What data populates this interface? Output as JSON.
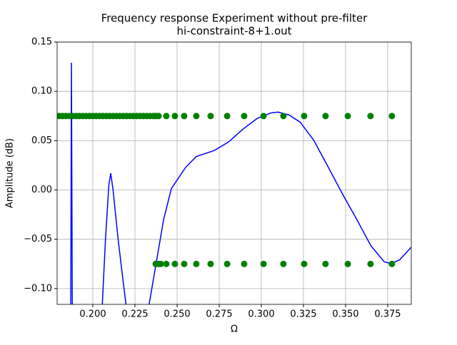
{
  "chart_data": {
    "type": "line",
    "title": [
      "Frequency response Experiment without pre-filter",
      "hi-constraint-8+1.out"
    ],
    "x_label": "Ω",
    "y_label": "Amplitude (dB)",
    "y_label_color": "#0000ff",
    "xlim": [
      0.1788,
      0.389
    ],
    "ylim": [
      -0.116,
      0.15
    ],
    "grid": true,
    "xticks": [
      {
        "value": 0.2,
        "label": "0.200"
      },
      {
        "value": 0.225,
        "label": "0.225"
      },
      {
        "value": 0.25,
        "label": "0.250"
      },
      {
        "value": 0.275,
        "label": "0.275"
      },
      {
        "value": 0.3,
        "label": "0.300"
      },
      {
        "value": 0.325,
        "label": "0.325"
      },
      {
        "value": 0.35,
        "label": "0.350"
      },
      {
        "value": 0.375,
        "label": "0.375"
      }
    ],
    "yticks": [
      {
        "value": -0.1,
        "label": "−0.10"
      },
      {
        "value": -0.05,
        "label": "−0.05"
      },
      {
        "value": 0,
        "label": "0.00"
      },
      {
        "value": 0.05,
        "label": "0.05"
      },
      {
        "value": 0.1,
        "label": "0.10"
      },
      {
        "value": 0.15,
        "label": "0.15"
      }
    ],
    "series": [
      {
        "style": "line",
        "color": "#0000ff",
        "x": [
          0.1869,
          0.1873,
          0.1878,
          0.1879,
          0.2055,
          0.2075,
          0.2095,
          0.2106,
          0.212,
          0.215,
          0.2185,
          0.22,
          0.2201,
          0.233,
          0.237,
          0.242,
          0.2466,
          0.2551,
          0.2614,
          0.272,
          0.2805,
          0.289,
          0.2975,
          0.3059,
          0.31,
          0.3165,
          0.323,
          0.331,
          0.339,
          0.348,
          0.357,
          0.365,
          0.373,
          0.377,
          0.382,
          0.389
        ],
        "values": [
          -0.12,
          0.129,
          -0.12,
          null,
          -0.12,
          -0.05,
          0.005,
          0.017,
          0.0,
          -0.05,
          -0.1,
          -0.12,
          null,
          -0.12,
          -0.08,
          -0.03,
          0.0014,
          0.023,
          0.034,
          0.04,
          0.0486,
          0.0616,
          0.0725,
          0.0783,
          0.079,
          0.076,
          0.0688,
          0.0507,
          0.0254,
          -0.0036,
          -0.031,
          -0.0565,
          -0.073,
          -0.0746,
          -0.071,
          -0.058
        ]
      },
      {
        "style": "points",
        "color": "#008000",
        "x": [
          0.18,
          0.182,
          0.184,
          0.186,
          0.188,
          0.19,
          0.192,
          0.194,
          0.196,
          0.198,
          0.2,
          0.202,
          0.204,
          0.206,
          0.208,
          0.21,
          0.212,
          0.214,
          0.216,
          0.218,
          0.22,
          0.222,
          0.224,
          0.226,
          0.228,
          0.23,
          0.232,
          0.234,
          0.236,
          0.2373,
          0.239,
          0.2436,
          0.2487,
          0.2542,
          0.2614,
          0.2699,
          0.2797,
          0.2898,
          0.3013,
          0.3131,
          0.3254,
          0.3381,
          0.3513,
          0.3648,
          0.3775
        ],
        "values": [
          0.075,
          0.075,
          0.075,
          0.075,
          0.075,
          0.075,
          0.075,
          0.075,
          0.075,
          0.075,
          0.075,
          0.075,
          0.075,
          0.075,
          0.075,
          0.075,
          0.075,
          0.075,
          0.075,
          0.075,
          0.075,
          0.075,
          0.075,
          0.075,
          0.075,
          0.075,
          0.075,
          0.075,
          0.075,
          0.075,
          0.075,
          0.075,
          0.075,
          0.075,
          0.075,
          0.075,
          0.075,
          0.075,
          0.075,
          0.075,
          0.075,
          0.075,
          0.075,
          0.075,
          0.075
        ]
      },
      {
        "style": "points",
        "color": "#008000",
        "x": [
          0.2373,
          0.239,
          0.2403,
          0.2436,
          0.2487,
          0.2542,
          0.2614,
          0.2699,
          0.2797,
          0.2898,
          0.3013,
          0.3131,
          0.3254,
          0.3381,
          0.3513,
          0.3648,
          0.3775
        ],
        "values": [
          -0.075,
          -0.075,
          -0.075,
          -0.075,
          -0.075,
          -0.075,
          -0.075,
          -0.075,
          -0.075,
          -0.075,
          -0.075,
          -0.075,
          -0.075,
          -0.075,
          -0.075,
          -0.075,
          -0.075
        ]
      }
    ]
  }
}
